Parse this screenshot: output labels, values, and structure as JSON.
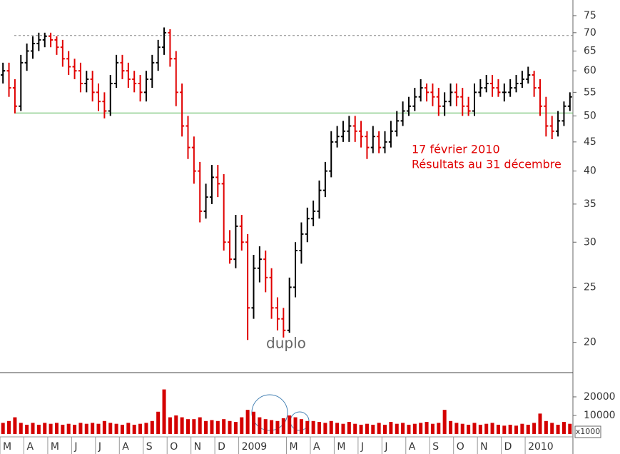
{
  "chart_data": {
    "type": "ohlc",
    "log_scale": true,
    "ylim": [
      17.7,
      79.9
    ],
    "yticks": [
      20,
      25,
      30,
      35,
      40,
      45,
      50,
      55,
      60,
      65,
      70,
      75
    ],
    "xticks": [
      {
        "value": 0,
        "label": "M"
      },
      {
        "value": 4,
        "label": "A"
      },
      {
        "value": 8,
        "label": "M"
      },
      {
        "value": 12,
        "label": "J"
      },
      {
        "value": 16,
        "label": "J"
      },
      {
        "value": 20,
        "label": "A"
      },
      {
        "value": 24,
        "label": "S"
      },
      {
        "value": 28,
        "label": "O"
      },
      {
        "value": 32,
        "label": "N"
      },
      {
        "value": 36,
        "label": "D"
      },
      {
        "value": 40,
        "label": "2009"
      },
      {
        "value": 48,
        "label": "M"
      },
      {
        "value": 52,
        "label": "A"
      },
      {
        "value": 56,
        "label": "M"
      },
      {
        "value": 60,
        "label": "J"
      },
      {
        "value": 64,
        "label": "J"
      },
      {
        "value": 68,
        "label": "A"
      },
      {
        "value": 72,
        "label": "S"
      },
      {
        "value": 76,
        "label": "O"
      },
      {
        "value": 80,
        "label": "N"
      },
      {
        "value": 84,
        "label": "D"
      },
      {
        "value": 88,
        "label": "2010"
      }
    ],
    "up_color": "#000000",
    "down_color": "#e00000",
    "open": [
      59,
      60,
      56,
      52,
      62,
      65,
      67,
      68,
      69,
      68,
      66,
      63,
      61,
      60,
      57,
      58,
      55,
      53,
      51,
      57,
      62,
      60,
      58,
      57,
      55,
      58,
      62,
      66,
      70,
      63,
      55,
      48,
      44,
      40,
      34,
      36,
      39,
      38,
      30,
      28,
      32,
      30,
      23,
      27,
      28,
      26,
      23,
      22,
      21,
      25,
      29,
      31,
      33,
      34,
      37,
      40,
      45,
      46,
      47,
      48,
      47,
      46,
      44,
      46,
      44,
      45,
      47,
      49,
      51,
      52,
      54,
      56,
      55,
      54,
      52,
      53,
      55,
      54,
      52,
      51,
      55,
      56,
      57,
      56,
      55,
      55,
      56,
      57,
      58,
      59,
      56,
      52,
      48,
      47,
      49,
      52
    ],
    "high": [
      62,
      62,
      58,
      64,
      67,
      69,
      70,
      70,
      70,
      69,
      68,
      65,
      63,
      62,
      60,
      60,
      57,
      55,
      59,
      64,
      64,
      62,
      60,
      59,
      60,
      64,
      68,
      71.5,
      71,
      65,
      57,
      50,
      46,
      41.5,
      38,
      41,
      41,
      39.5,
      31.5,
      33.5,
      33.5,
      31,
      28.5,
      29.5,
      29,
      27,
      24,
      23,
      26,
      30,
      32.5,
      34.5,
      35.5,
      38.5,
      41.5,
      47,
      48,
      49,
      50,
      50,
      49,
      47,
      48,
      47,
      47,
      49,
      51,
      53,
      54,
      56,
      58,
      57,
      57,
      56,
      55,
      57,
      57,
      56,
      54,
      57,
      58,
      59,
      59,
      58,
      57,
      58,
      59,
      60,
      61,
      60,
      58,
      54,
      50,
      51,
      53,
      55
    ],
    "low": [
      57,
      54,
      50.5,
      51,
      60,
      63,
      65,
      66,
      66,
      64,
      61,
      59,
      58,
      55,
      55,
      53,
      51,
      49.5,
      50,
      56,
      58,
      56,
      55,
      53,
      53,
      56,
      60,
      64,
      61,
      52,
      46,
      42,
      38,
      32.5,
      33,
      35,
      36,
      29,
      27.5,
      27,
      29,
      20.2,
      22,
      25.5,
      24.5,
      22,
      21,
      20.4,
      20.8,
      24,
      27.5,
      30,
      32,
      33,
      36,
      39,
      44,
      45,
      45,
      45,
      44,
      42,
      43,
      43,
      43,
      44,
      46,
      48,
      50,
      51,
      53,
      53,
      52,
      50,
      50,
      52,
      52,
      50,
      50,
      50,
      54,
      55,
      54,
      54,
      53,
      54,
      55,
      56,
      57,
      54,
      50,
      46,
      45.5,
      46,
      48,
      51
    ],
    "close": [
      60,
      56,
      52,
      62,
      65,
      67,
      68,
      69,
      68,
      66,
      63,
      61,
      60,
      57,
      58,
      55,
      53,
      51,
      57,
      62,
      60,
      58,
      57,
      55,
      58,
      62,
      66,
      70,
      63,
      55,
      48,
      44,
      40,
      34,
      36,
      39,
      38,
      30,
      28,
      32,
      30,
      23,
      27,
      28,
      26,
      23,
      22,
      21,
      25,
      29,
      31,
      33,
      34,
      37,
      40,
      45,
      46,
      47,
      48,
      47,
      46,
      44,
      46,
      44,
      45,
      47,
      49,
      51,
      52,
      54,
      56,
      55,
      54,
      52,
      53,
      55,
      54,
      52,
      51,
      55,
      56,
      57,
      56,
      55,
      55,
      56,
      57,
      58,
      59,
      56,
      52,
      48,
      47,
      49,
      52,
      54
    ],
    "reference_lines": [
      {
        "value": 69.2,
        "color": "#888888",
        "dashed": true
      },
      {
        "value": 50.6,
        "color": "#5cb85c",
        "dashed": false
      }
    ],
    "annotations": [
      "17 février 2010",
      "Résultats au 31 décembre",
      "duplo"
    ],
    "volume": {
      "color": "#d40000",
      "ylim": [
        0,
        31900
      ],
      "yticks": [
        10000,
        20000
      ],
      "unit_label": "x1000",
      "values": [
        6000,
        7000,
        9000,
        6000,
        5000,
        6000,
        5000,
        6000,
        5500,
        6000,
        5000,
        5500,
        5000,
        6000,
        5500,
        6000,
        5500,
        7000,
        6000,
        5500,
        5000,
        6000,
        5000,
        5500,
        6000,
        7000,
        12000,
        24000,
        9000,
        10000,
        9000,
        8000,
        8000,
        9000,
        7000,
        7500,
        7000,
        8000,
        7000,
        6500,
        9000,
        13000,
        12000,
        9000,
        8000,
        7500,
        7000,
        8500,
        10000,
        9000,
        8000,
        7000,
        7000,
        6500,
        6000,
        7000,
        6000,
        5500,
        6500,
        5500,
        5000,
        5500,
        5000,
        6000,
        5000,
        6500,
        5500,
        6000,
        5000,
        5500,
        6000,
        6500,
        5500,
        6000,
        13000,
        7000,
        6000,
        5500,
        5000,
        6000,
        5000,
        5500,
        6000,
        5000,
        4500,
        5000,
        4500,
        5500,
        5000,
        6000,
        11000,
        7000,
        6000,
        5000,
        6500,
        5500
      ]
    }
  }
}
